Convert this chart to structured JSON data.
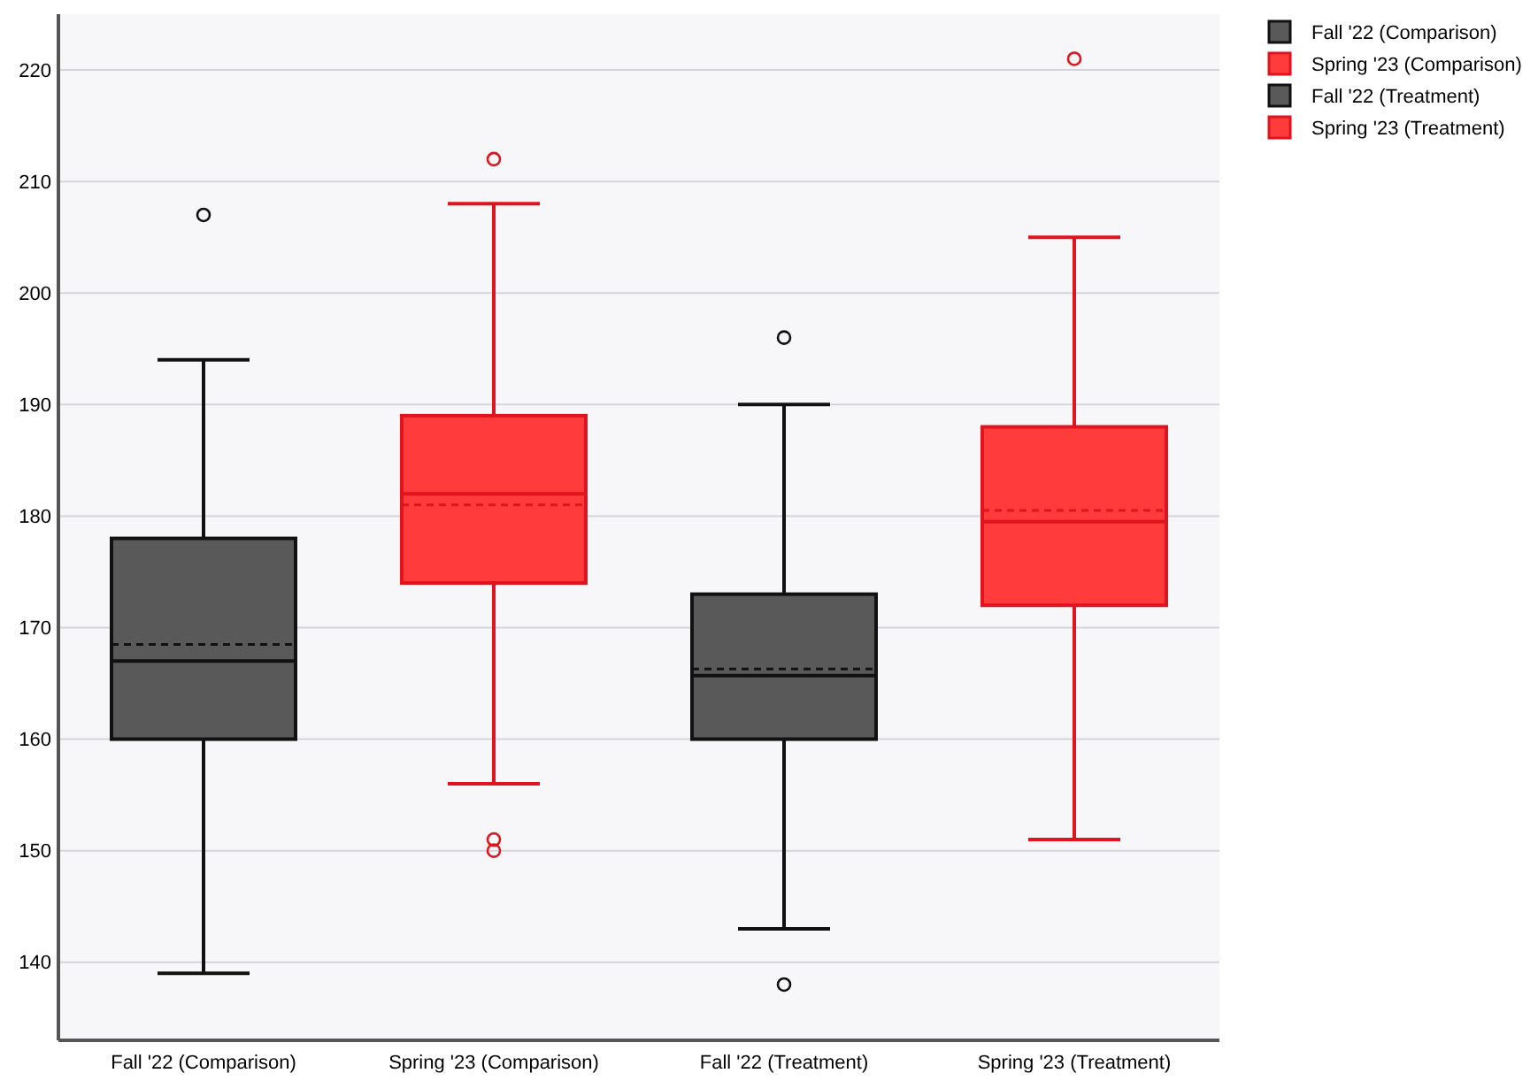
{
  "chart_data": {
    "type": "box",
    "categories": [
      "Fall '22 (Comparison)",
      "Spring '23 (Comparison)",
      "Fall '22 (Treatment)",
      "Spring '23 (Treatment)"
    ],
    "series": [
      {
        "name": "Fall '22 (Comparison)",
        "color": "#595959",
        "boxes": [
          {
            "low": 139,
            "q1": 160,
            "median": 167,
            "q3": 178,
            "high": 194,
            "mean": 168.5,
            "outliers": [
              207
            ]
          },
          null,
          null,
          null
        ]
      },
      {
        "name": "Spring '23 (Comparison)",
        "color": "#ff3b3b",
        "boxes": [
          null,
          {
            "low": 156,
            "q1": 174,
            "median": 182,
            "q3": 189,
            "high": 208,
            "mean": 181,
            "outliers": [
              212,
              151,
              150
            ]
          },
          null,
          null
        ]
      },
      {
        "name": "Fall '22 (Treatment)",
        "color": "#595959",
        "boxes": [
          null,
          null,
          {
            "low": 143,
            "q1": 160,
            "median": 165.7,
            "q3": 173,
            "high": 190,
            "mean": 166.3,
            "outliers": [
              196,
              138
            ]
          },
          null
        ]
      },
      {
        "name": "Spring '23 (Treatment)",
        "color": "#ff3b3b",
        "boxes": [
          null,
          null,
          null,
          {
            "low": 151,
            "q1": 172,
            "median": 179.5,
            "q3": 188,
            "high": 205,
            "mean": 180.5,
            "outliers": [
              221
            ]
          }
        ]
      }
    ],
    "ylim": [
      133,
      225
    ],
    "yticks": [
      140,
      150,
      160,
      170,
      180,
      190,
      200,
      210,
      220
    ],
    "grid": "y",
    "legend": "top right"
  }
}
